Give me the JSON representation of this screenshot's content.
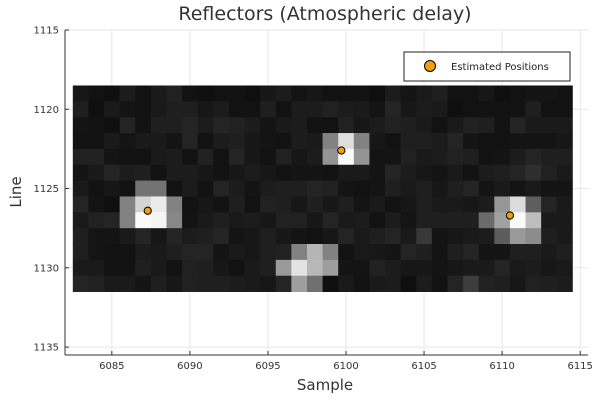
{
  "chart_data": {
    "type": "heatmap",
    "title": "Reflectors (Atmospheric delay)",
    "xlabel": "Sample",
    "ylabel": "Line",
    "xlim": [
      6082,
      6115.5
    ],
    "ylim": [
      1115,
      1135.5
    ],
    "y_reversed": true,
    "xticks": [
      6085,
      6090,
      6095,
      6100,
      6105,
      6110,
      6115
    ],
    "yticks": [
      1115,
      1120,
      1125,
      1130,
      1135
    ],
    "grid": true,
    "legend_position": "top-right",
    "heatmap": {
      "x_start": 6082.5,
      "y_start": 1118.5,
      "cell_width": 1,
      "cell_height": 1,
      "colormap": "grayscale",
      "values": [
        [
          0.09,
          0.07,
          0.06,
          0.11,
          0.07,
          0.1,
          0.13,
          0.07,
          0.06,
          0.07,
          0.07,
          0.06,
          0.09,
          0.11,
          0.08,
          0.09,
          0.07,
          0.07,
          0.07,
          0.06,
          0.11,
          0.08,
          0.1,
          0.12,
          0.07,
          0.07,
          0.09,
          0.06,
          0.07,
          0.08,
          0.08,
          0.07
        ],
        [
          0.12,
          0.06,
          0.1,
          0.08,
          0.07,
          0.1,
          0.12,
          0.12,
          0.09,
          0.11,
          0.07,
          0.07,
          0.12,
          0.07,
          0.11,
          0.11,
          0.13,
          0.11,
          0.1,
          0.08,
          0.14,
          0.09,
          0.11,
          0.1,
          0.06,
          0.07,
          0.07,
          0.07,
          0.07,
          0.12,
          0.07,
          0.07
        ],
        [
          0.08,
          0.07,
          0.06,
          0.14,
          0.07,
          0.12,
          0.12,
          0.14,
          0.11,
          0.14,
          0.13,
          0.11,
          0.08,
          0.1,
          0.11,
          0.07,
          0.07,
          0.13,
          0.09,
          0.11,
          0.13,
          0.12,
          0.1,
          0.07,
          0.1,
          0.13,
          0.12,
          0.07,
          0.14,
          0.1,
          0.1,
          0.1
        ],
        [
          0.07,
          0.07,
          0.1,
          0.08,
          0.1,
          0.1,
          0.08,
          0.14,
          0.07,
          0.11,
          0.12,
          0.09,
          0.08,
          0.07,
          0.11,
          0.1,
          0.51,
          0.87,
          0.51,
          0.09,
          0.07,
          0.12,
          0.12,
          0.11,
          0.14,
          0.08,
          0.07,
          0.07,
          0.08,
          0.08,
          0.08,
          0.09
        ],
        [
          0.13,
          0.13,
          0.08,
          0.07,
          0.07,
          0.1,
          0.11,
          0.07,
          0.13,
          0.07,
          0.14,
          0.09,
          0.07,
          0.13,
          0.09,
          0.11,
          0.58,
          0.98,
          0.58,
          0.08,
          0.08,
          0.13,
          0.1,
          0.11,
          0.13,
          0.12,
          0.07,
          0.08,
          0.11,
          0.14,
          0.12,
          0.12
        ],
        [
          0.08,
          0.1,
          0.14,
          0.11,
          0.12,
          0.07,
          0.11,
          0.11,
          0.09,
          0.07,
          0.09,
          0.11,
          0.09,
          0.07,
          0.08,
          0.08,
          0.07,
          0.1,
          0.1,
          0.08,
          0.14,
          0.11,
          0.09,
          0.08,
          0.1,
          0.07,
          0.11,
          0.12,
          0.14,
          0.18,
          0.13,
          0.1
        ],
        [
          0.1,
          0.07,
          0.09,
          0.07,
          0.45,
          0.45,
          0.07,
          0.11,
          0.07,
          0.14,
          0.11,
          0.08,
          0.11,
          0.12,
          0.12,
          0.14,
          0.13,
          0.08,
          0.07,
          0.08,
          0.12,
          0.1,
          0.12,
          0.09,
          0.12,
          0.14,
          0.08,
          0.1,
          0.08,
          0.1,
          0.08,
          0.08
        ],
        [
          0.14,
          0.08,
          0.06,
          0.51,
          0.83,
          0.92,
          0.51,
          0.07,
          0.09,
          0.07,
          0.12,
          0.07,
          0.13,
          0.12,
          0.09,
          0.12,
          0.09,
          0.12,
          0.08,
          0.1,
          0.07,
          0.09,
          0.12,
          0.1,
          0.1,
          0.09,
          0.11,
          0.59,
          0.86,
          0.37,
          0.14,
          0.1
        ],
        [
          0.1,
          0.13,
          0.14,
          0.51,
          0.98,
          0.96,
          0.53,
          0.08,
          0.1,
          0.12,
          0.1,
          0.11,
          0.09,
          0.13,
          0.13,
          0.09,
          0.14,
          0.1,
          0.11,
          0.07,
          0.11,
          0.08,
          0.12,
          0.12,
          0.12,
          0.12,
          0.42,
          0.63,
          0.98,
          0.74,
          0.1,
          0.1
        ],
        [
          0.12,
          0.08,
          0.08,
          0.1,
          0.14,
          0.09,
          0.14,
          0.11,
          0.12,
          0.14,
          0.08,
          0.09,
          0.12,
          0.09,
          0.08,
          0.07,
          0.09,
          0.14,
          0.1,
          0.12,
          0.14,
          0.1,
          0.22,
          0.08,
          0.09,
          0.1,
          0.11,
          0.36,
          0.6,
          0.55,
          0.12,
          0.1
        ],
        [
          0.12,
          0.08,
          0.07,
          0.07,
          0.11,
          0.1,
          0.12,
          0.14,
          0.14,
          0.08,
          0.1,
          0.09,
          0.12,
          0.13,
          0.51,
          0.71,
          0.51,
          0.07,
          0.1,
          0.09,
          0.08,
          0.14,
          0.12,
          0.08,
          0.12,
          0.14,
          0.08,
          0.08,
          0.12,
          0.12,
          0.1,
          0.12
        ],
        [
          0.1,
          0.1,
          0.07,
          0.07,
          0.12,
          0.1,
          0.07,
          0.13,
          0.12,
          0.09,
          0.07,
          0.1,
          0.12,
          0.6,
          0.89,
          0.72,
          0.62,
          0.08,
          0.08,
          0.13,
          0.11,
          0.09,
          0.09,
          0.08,
          0.09,
          0.1,
          0.1,
          0.14,
          0.1,
          0.11,
          0.09,
          0.1
        ],
        [
          0.14,
          0.13,
          0.1,
          0.1,
          0.08,
          0.12,
          0.09,
          0.13,
          0.12,
          0.12,
          0.11,
          0.1,
          0.09,
          0.14,
          0.62,
          0.44,
          0.06,
          0.1,
          0.07,
          0.1,
          0.11,
          0.06,
          0.11,
          0.07,
          0.14,
          0.24,
          0.13,
          0.12,
          0.09,
          0.13,
          0.12,
          0.11
        ]
      ]
    },
    "series": [
      {
        "name": "Estimated Positions",
        "type": "scatter",
        "color": "#f39c0f",
        "points": [
          {
            "x": 6087.3,
            "y": 1126.4
          },
          {
            "x": 6099.7,
            "y": 1122.6
          },
          {
            "x": 6110.5,
            "y": 1126.7
          }
        ]
      }
    ]
  }
}
